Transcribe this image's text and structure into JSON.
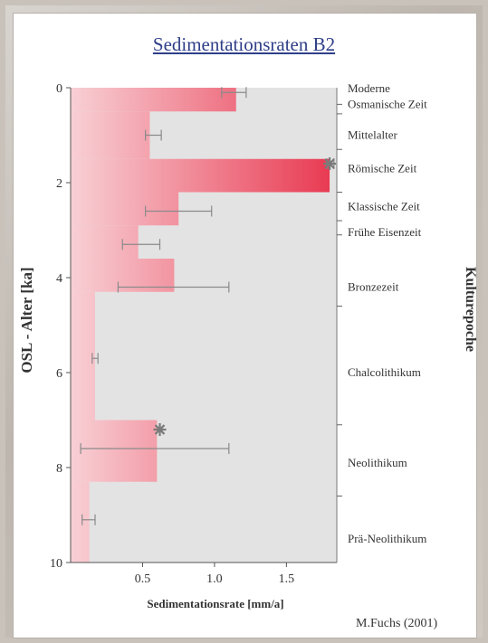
{
  "title": "Sedimentationsraten B2",
  "credit": "M.Fuchs (2001)",
  "colors": {
    "bar_strong": "#e8374f",
    "bar_light": "#f8d0d5",
    "plot_bg": "#e3e3e3",
    "errorbar": "#8a8a8a",
    "marker": "#7a7a7a"
  },
  "chart_data": {
    "type": "step-area",
    "title": "Sedimentationsraten B2",
    "xlabel": "Sedimentationsrate [mm/a]",
    "ylabel": "OSL - Alter [ka]",
    "right_label": "Kulturepoche",
    "xlim": [
      0,
      1.85
    ],
    "ylim": [
      0,
      10
    ],
    "y_inverted": true,
    "x_ticks": [
      0.5,
      1.0,
      1.5
    ],
    "x_tick_labels": [
      "0.5",
      "1.0",
      "1.5"
    ],
    "y_ticks": [
      0,
      2,
      4,
      6,
      8,
      10
    ],
    "segments": [
      {
        "age_start": 0.0,
        "age_end": 0.5,
        "rate": 1.15
      },
      {
        "age_start": 0.5,
        "age_end": 1.5,
        "rate": 0.55
      },
      {
        "age_start": 1.5,
        "age_end": 2.2,
        "rate": 1.8
      },
      {
        "age_start": 2.2,
        "age_end": 2.9,
        "rate": 0.75
      },
      {
        "age_start": 2.9,
        "age_end": 3.6,
        "rate": 0.47
      },
      {
        "age_start": 3.6,
        "age_end": 4.3,
        "rate": 0.72
      },
      {
        "age_start": 4.3,
        "age_end": 7.0,
        "rate": 0.17
      },
      {
        "age_start": 7.0,
        "age_end": 8.3,
        "rate": 0.6
      },
      {
        "age_start": 8.3,
        "age_end": 10.0,
        "rate": 0.13
      }
    ],
    "error_bars": [
      {
        "age": 0.1,
        "rate": 1.1,
        "low": 1.05,
        "high": 1.22
      },
      {
        "age": 1.0,
        "rate": 0.58,
        "low": 0.52,
        "high": 0.63
      },
      {
        "age": 1.6,
        "rate": 1.8,
        "low": 1.78,
        "high": 1.83,
        "marker": true
      },
      {
        "age": 2.6,
        "rate": 0.52,
        "low": 0.52,
        "high": 0.98
      },
      {
        "age": 3.3,
        "rate": 0.47,
        "low": 0.36,
        "high": 0.62
      },
      {
        "age": 4.2,
        "rate": 0.72,
        "low": 0.33,
        "high": 1.1
      },
      {
        "age": 5.7,
        "rate": 0.17,
        "low": 0.15,
        "high": 0.19
      },
      {
        "age": 7.2,
        "rate": 0.62,
        "low": 0.62,
        "high": 0.62,
        "marker": true
      },
      {
        "age": 7.6,
        "rate": 0.58,
        "low": 0.07,
        "high": 1.1
      },
      {
        "age": 9.1,
        "rate": 0.13,
        "low": 0.08,
        "high": 0.17
      }
    ],
    "epoch_boundaries": [
      0.35,
      0.55,
      1.3,
      2.2,
      2.8,
      3.1,
      4.6,
      7.1,
      8.6
    ],
    "epochs": [
      {
        "name": "Moderne",
        "age": 0.02
      },
      {
        "name": "Osmanische Zeit",
        "age": 0.35
      },
      {
        "name": "Mittelalter",
        "age": 1.0
      },
      {
        "name": "Römische Zeit",
        "age": 1.7
      },
      {
        "name": "Klassische Zeit",
        "age": 2.5
      },
      {
        "name": "Frühe Eisenzeit",
        "age": 3.05
      },
      {
        "name": "Bronzezeit",
        "age": 4.2
      },
      {
        "name": "Chalcolithikum",
        "age": 6.0
      },
      {
        "name": "Neolithikum",
        "age": 7.9
      },
      {
        "name": "Prä-Neolithikum",
        "age": 9.5
      }
    ]
  }
}
